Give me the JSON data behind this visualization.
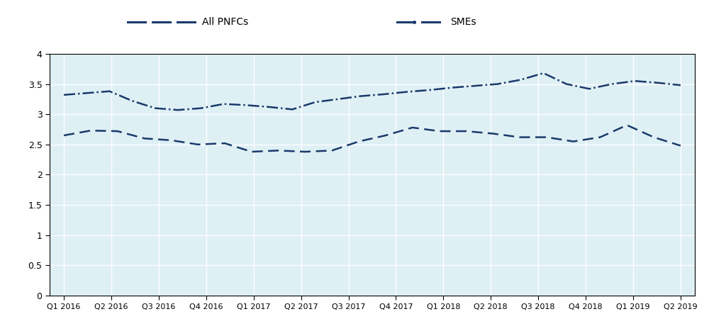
{
  "background_color": "#dff0f5",
  "legend_bg": "#d0d0d0",
  "line_color": "#1a3a6b",
  "x_labels": [
    "Q1 2016",
    "Q2 2016",
    "Q3 2016",
    "Q4 2016",
    "Q1 2017",
    "Q2 2017",
    "Q3 2017",
    "Q4 2017",
    "Q1 2018",
    "Q2 2018",
    "Q3 2018",
    "Q4 2018",
    "Q1 2019",
    "Q2 2019"
  ],
  "all_pnfcs": [
    2.65,
    2.73,
    2.72,
    2.6,
    2.57,
    2.5,
    2.52,
    2.38,
    2.4,
    2.38,
    2.4,
    2.55,
    2.65,
    2.78,
    2.72,
    2.72,
    2.68,
    2.62,
    2.62,
    2.55,
    2.62,
    2.82,
    2.62,
    2.48
  ],
  "smes": [
    3.32,
    3.35,
    3.38,
    3.22,
    3.1,
    3.07,
    3.1,
    3.17,
    3.15,
    3.12,
    3.08,
    3.2,
    3.25,
    3.3,
    3.33,
    3.37,
    3.4,
    3.44,
    3.47,
    3.5,
    3.57,
    3.68,
    3.5,
    3.42,
    3.5,
    3.55,
    3.52,
    3.48
  ],
  "ylim": [
    0,
    4
  ],
  "yticks": [
    0,
    0.5,
    1.0,
    1.5,
    2.0,
    2.5,
    3.0,
    3.5,
    4.0
  ],
  "legend_labels": [
    "All PNFCs",
    "SMEs"
  ],
  "fig_width": 10.0,
  "fig_height": 4.74
}
